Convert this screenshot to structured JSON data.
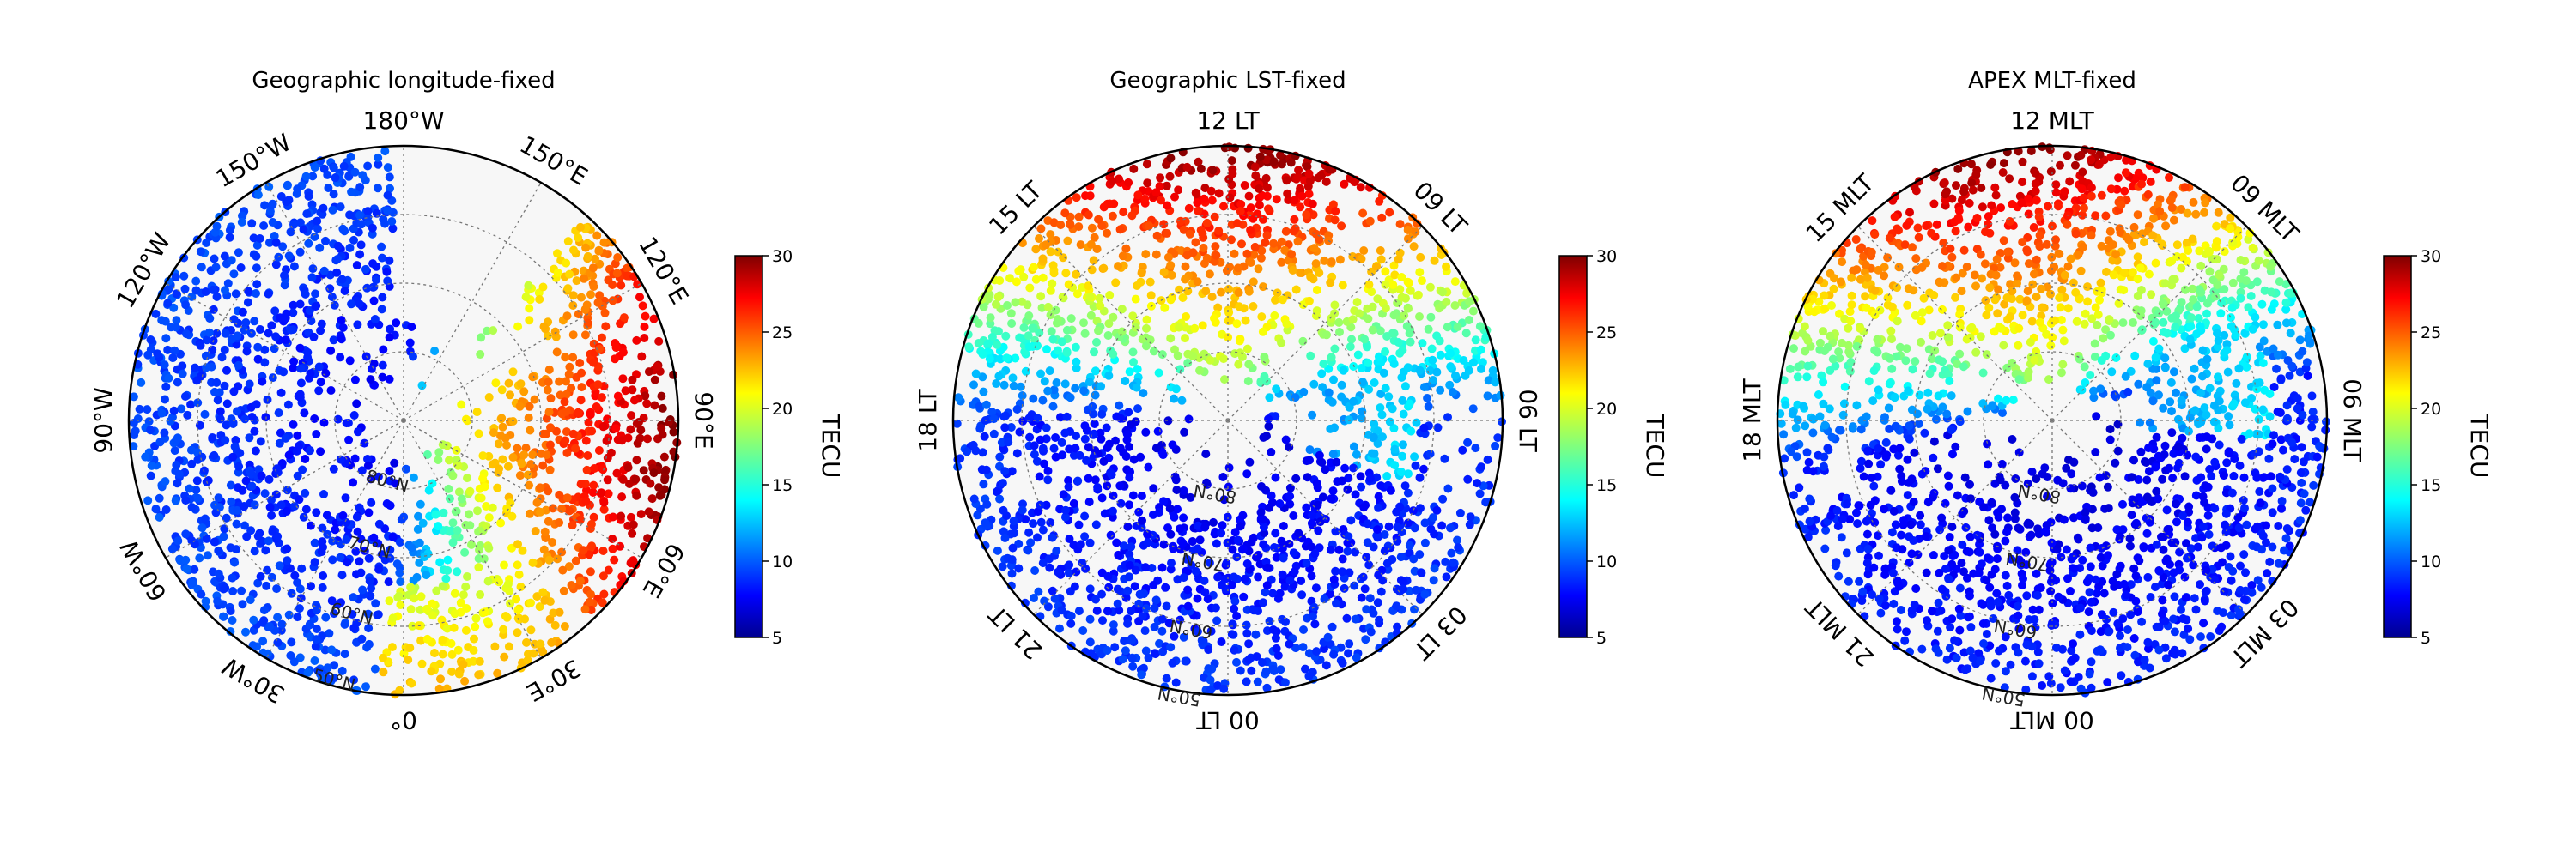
{
  "figure": {
    "colormap": "jet",
    "colorbar": {
      "label": "TECU",
      "ticks": [
        "5",
        "10",
        "15",
        "20",
        "25",
        "30"
      ],
      "range": [
        5,
        30
      ]
    }
  },
  "chart_data": [
    {
      "type": "scatter",
      "projection": "north polar",
      "title": "Geographic longitude-fixed",
      "direction_labels": [
        "180°W",
        "150°E",
        "120°E",
        "90°E",
        "60°E",
        "30°E",
        "0°",
        "30°W",
        "60°W",
        "90°W",
        "120°W",
        "150°W"
      ],
      "latitude_labels": [
        "80°N",
        "70°N",
        "60°N",
        "50°N"
      ],
      "value_range": [
        5,
        30
      ],
      "colorbar_label": "TECU"
    },
    {
      "type": "scatter",
      "projection": "north polar",
      "title": "Geographic LST-fixed",
      "direction_labels": [
        "12 LT",
        "09 LT",
        "06 LT",
        "03 LT",
        "00 LT",
        "21 LT",
        "18 LT",
        "15 LT"
      ],
      "latitude_labels": [
        "80°N",
        "70°N",
        "60°N",
        "50°N"
      ],
      "value_range": [
        5,
        30
      ],
      "colorbar_label": "TECU"
    },
    {
      "type": "scatter",
      "projection": "north polar",
      "title": "APEX MLT-fixed",
      "direction_labels": [
        "12 MLT",
        "09 MLT",
        "06 MLT",
        "03 MLT",
        "00 MLT",
        "21 MLT",
        "18 MLT",
        "15 MLT"
      ],
      "latitude_labels": [
        "80°N",
        "70°N",
        "60°N",
        "50°N"
      ],
      "value_range": [
        5,
        30
      ],
      "colorbar_label": "TECU"
    }
  ]
}
